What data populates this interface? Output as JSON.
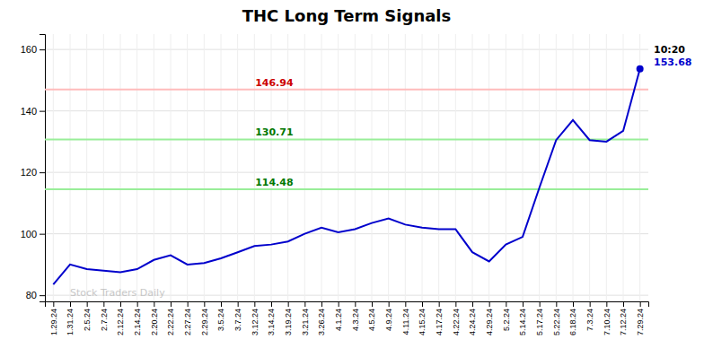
{
  "chart_data": {
    "type": "line",
    "title": "THC Long Term Signals",
    "categories": [
      "1.29.24",
      "1.31.24",
      "2.5.24",
      "2.7.24",
      "2.12.24",
      "2.14.24",
      "2.20.24",
      "2.22.24",
      "2.27.24",
      "2.29.24",
      "3.5.24",
      "3.7.24",
      "3.12.24",
      "3.14.24",
      "3.19.24",
      "3.21.24",
      "3.26.24",
      "4.1.24",
      "4.3.24",
      "4.5.24",
      "4.9.24",
      "4.11.24",
      "4.15.24",
      "4.17.24",
      "4.22.24",
      "4.24.24",
      "4.29.24",
      "5.2.24",
      "5.14.24",
      "5.17.24",
      "5.22.24",
      "6.18.24",
      "7.3.24",
      "7.10.24",
      "7.12.24",
      "7.29.24"
    ],
    "series": [
      {
        "color": "#0000cc",
        "values": [
          83.5,
          90.0,
          88.5,
          88.0,
          87.5,
          88.5,
          91.5,
          93.0,
          90.0,
          90.5,
          92.0,
          94.0,
          96.0,
          96.5,
          97.5,
          100.0,
          102.0,
          100.5,
          101.5,
          103.5,
          105.0,
          103.0,
          102.0,
          101.5,
          101.5,
          94.0,
          91.0,
          96.5,
          99.0,
          115.0,
          130.5,
          137.0,
          130.5,
          130.0,
          133.5,
          153.68
        ]
      }
    ],
    "reference_lines": [
      {
        "value": 146.94,
        "label": "146.94",
        "color": "#ffbbbb",
        "label_color": "#cc0000"
      },
      {
        "value": 130.71,
        "label": "130.71",
        "color": "#99ee99",
        "label_color": "#007700"
      },
      {
        "value": 114.48,
        "label": "114.48",
        "color": "#99ee99",
        "label_color": "#007700"
      }
    ],
    "annotations": [
      {
        "text": "10:20",
        "color": "#000000"
      },
      {
        "text": "153.68",
        "color": "#0000cc"
      }
    ],
    "watermark": {
      "text": "Stock Traders Daily",
      "color": "#bbbbbb"
    },
    "ylim": [
      78,
      165
    ],
    "yticks": [
      80,
      100,
      120,
      140,
      160
    ],
    "grid": true
  }
}
